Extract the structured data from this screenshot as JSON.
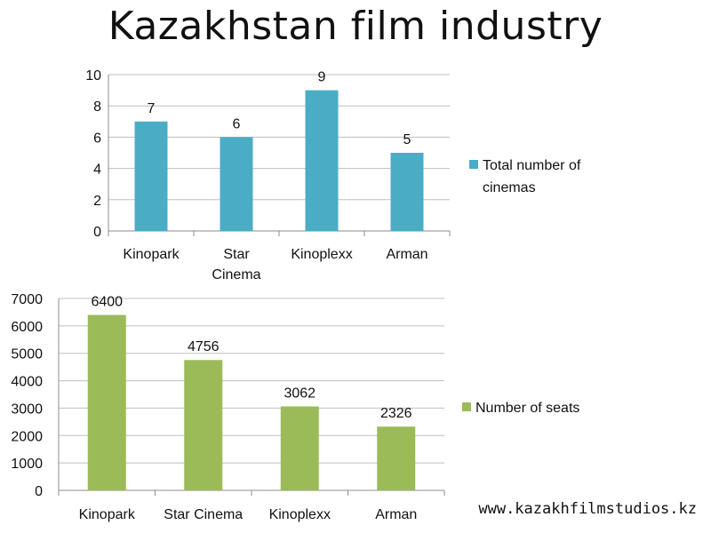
{
  "title": "Kazakhstan film industry",
  "footer": {
    "url": "www.kazakhfilmstudios.kz"
  },
  "chart_data": [
    {
      "type": "bar",
      "categories": [
        "Kinopark",
        "Star Cinema",
        "Kinoplexx",
        "Arman"
      ],
      "category_lines": [
        [
          "Kinopark"
        ],
        [
          "Star",
          "Cinema"
        ],
        [
          "Kinoplexx"
        ],
        [
          "Arman"
        ]
      ],
      "series": [
        {
          "name": "Total number of cinemas",
          "values": [
            7,
            6,
            9,
            5
          ]
        }
      ],
      "data_labels": [
        "7",
        "6",
        "9",
        "5"
      ],
      "legend_lines": [
        "Total number of",
        "cinemas"
      ],
      "ylim": [
        0,
        10
      ],
      "yticks": [
        0,
        2,
        4,
        6,
        8,
        10
      ],
      "color": "#4bacc6",
      "grid": true,
      "legend_position": "right"
    },
    {
      "type": "bar",
      "categories": [
        "Kinopark",
        "Star Cinema",
        "Kinoplexx",
        "Arman"
      ],
      "category_lines": [
        [
          "Kinopark"
        ],
        [
          "Star Cinema"
        ],
        [
          "Kinoplexx"
        ],
        [
          "Arman"
        ]
      ],
      "series": [
        {
          "name": "Number of seats",
          "values": [
            6400,
            4756,
            3062,
            2326
          ]
        }
      ],
      "data_labels": [
        "6400",
        "4756",
        "3062",
        "2326"
      ],
      "legend_lines": [
        "Number of seats"
      ],
      "ylim": [
        0,
        7000
      ],
      "yticks": [
        0,
        1000,
        2000,
        3000,
        4000,
        5000,
        6000,
        7000
      ],
      "color": "#9bbb59",
      "grid": true,
      "legend_position": "right"
    }
  ]
}
